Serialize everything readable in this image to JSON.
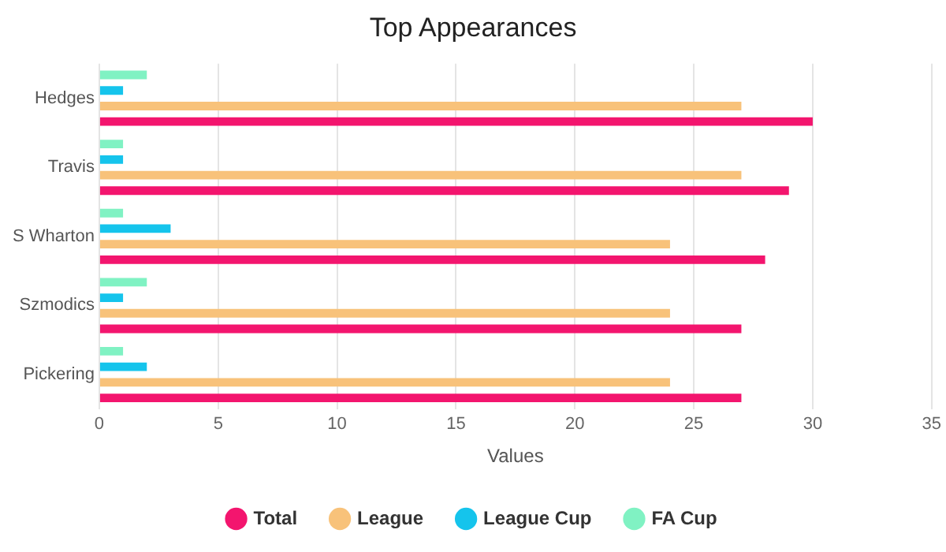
{
  "chart_data": {
    "type": "bar",
    "orientation": "horizontal",
    "title": "Top Appearances",
    "xlabel": "Values",
    "categories": [
      "Hedges",
      "Travis",
      "S Wharton",
      "Szmodics",
      "Pickering"
    ],
    "series": [
      {
        "name": "Total",
        "color": "#f3156e",
        "values": [
          30,
          29,
          28,
          27,
          27
        ]
      },
      {
        "name": "League",
        "color": "#f8c27a",
        "values": [
          27,
          27,
          24,
          24,
          24
        ]
      },
      {
        "name": "League Cup",
        "color": "#15c4ec",
        "values": [
          1,
          1,
          3,
          1,
          2
        ]
      },
      {
        "name": "FA Cup",
        "color": "#80f2c3",
        "values": [
          2,
          1,
          1,
          2,
          1
        ]
      }
    ],
    "xlim": [
      0,
      35
    ],
    "xticks": [
      0,
      5,
      10,
      15,
      20,
      25,
      30,
      35
    ],
    "grid": "x",
    "legend": "bottom"
  }
}
